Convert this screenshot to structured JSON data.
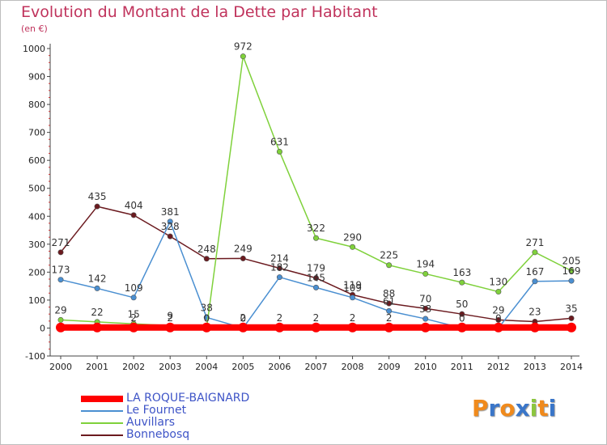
{
  "title": "Evolution du Montant de la Dette par Habitant",
  "subtitle": "(en €)",
  "logo": {
    "text": "Proxiti",
    "letters": [
      "P",
      "r",
      "o",
      "x",
      "i",
      "t",
      "i"
    ],
    "colors": [
      "#f08a1c",
      "#3a76c9",
      "#f08a1c",
      "#3a76c9",
      "#8cc63f",
      "#f08a1c",
      "#3a76c9"
    ]
  },
  "chart_data": {
    "type": "line",
    "title": "Evolution du Montant de la Dette par Habitant",
    "subtitle": "(en €)",
    "xlabel": "",
    "ylabel": "",
    "x": [
      2000,
      2001,
      2002,
      2003,
      2004,
      2005,
      2006,
      2007,
      2008,
      2009,
      2010,
      2011,
      2012,
      2013,
      2014
    ],
    "ylim": [
      -100,
      1000
    ],
    "yticks": [
      -100,
      0,
      100,
      200,
      300,
      400,
      500,
      600,
      700,
      800,
      900,
      1000
    ],
    "grid": false,
    "legend_position": "bottom-left",
    "series": [
      {
        "name": "LA ROQUE-BAIGNARD",
        "color": "#ff0000",
        "values": [
          2,
          2,
          2,
          2,
          2,
          2,
          2,
          2,
          2,
          2,
          2,
          2,
          2,
          2,
          2
        ],
        "labels": [
          "",
          "",
          "2",
          "2",
          "",
          "2",
          "2",
          "2",
          "2",
          "2",
          "",
          "",
          "",
          "",
          ""
        ]
      },
      {
        "name": "Le Fournet",
        "color": "#4a8fd1",
        "values": [
          173,
          142,
          109,
          381,
          38,
          0,
          182,
          145,
          109,
          61,
          33,
          0,
          0,
          167,
          169
        ],
        "labels": [
          "173",
          "142",
          "109",
          "381",
          "38",
          "0",
          "182",
          "145",
          "109",
          "61",
          "33",
          "0",
          "0",
          "167",
          "169"
        ]
      },
      {
        "name": "Auvillars",
        "color": "#7fd13b",
        "values": [
          29,
          22,
          15,
          9,
          0,
          972,
          631,
          322,
          290,
          225,
          194,
          163,
          130,
          271,
          205
        ],
        "labels": [
          "29",
          "22",
          "15",
          "9",
          "0",
          "972",
          "631",
          "322",
          "290",
          "225",
          "194",
          "163",
          "130",
          "271",
          "205"
        ]
      },
      {
        "name": "Bonnebosq",
        "color": "#6b1a1f",
        "values": [
          271,
          435,
          404,
          328,
          248,
          249,
          214,
          179,
          119,
          88,
          70,
          50,
          29,
          23,
          35
        ],
        "labels": [
          "271",
          "435",
          "404",
          "328",
          "248",
          "249",
          "214",
          "179",
          "119",
          "88",
          "70",
          "50",
          "29",
          "23",
          "35"
        ]
      }
    ]
  }
}
